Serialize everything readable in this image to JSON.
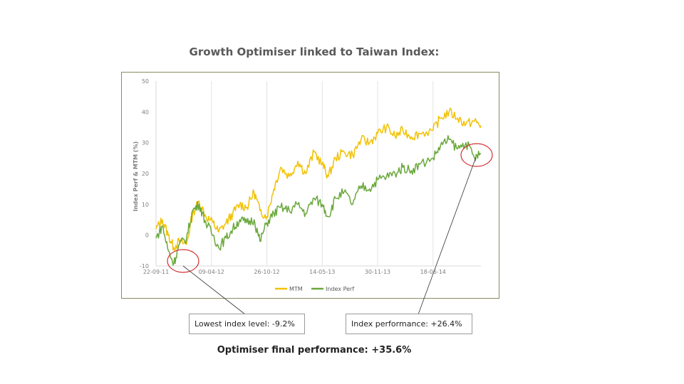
{
  "slide": {
    "title": "Growth Optimiser linked to Taiwan Index:",
    "footer": "Optimiser final performance: +35.6%"
  },
  "callouts": {
    "lowest": "Lowest index level: -9.2%",
    "index_perf": "Index performance: +26.4%"
  },
  "colors": {
    "mtm": "#f2c100",
    "index_perf": "#6aa83c",
    "highlight": "#d32f2f",
    "frame": "#8b8a64"
  },
  "chart_data": {
    "type": "line",
    "title": "",
    "xlabel": "",
    "ylabel": "Index Perf & MTM (%)",
    "ylim": [
      -10,
      50
    ],
    "yticks": [
      -10,
      0,
      10,
      20,
      30,
      40,
      50
    ],
    "x_start": "22-09-11",
    "x_end": "08-12-14",
    "x_ticks": [
      "22-09-11",
      "09-04-12",
      "26-10-12",
      "14-05-13",
      "30-11-13",
      "18-06-14"
    ],
    "grid": "vertical",
    "legend": "bottom",
    "series": [
      {
        "name": "MTM",
        "x": [
          "22-09-11",
          "15-10-11",
          "05-11-11",
          "25-11-11",
          "15-12-11",
          "10-01-12",
          "01-02-12",
          "25-02-12",
          "20-03-12",
          "15-04-12",
          "05-05-12",
          "01-06-12",
          "25-06-12",
          "20-07-12",
          "15-08-12",
          "10-09-12",
          "01-10-12",
          "26-10-12",
          "20-11-12",
          "15-12-12",
          "15-01-13",
          "15-02-13",
          "15-03-13",
          "15-04-13",
          "14-05-13",
          "05-06-13",
          "01-07-13",
          "01-08-13",
          "01-09-13",
          "01-10-13",
          "01-11-13",
          "30-11-13",
          "01-01-14",
          "01-02-14",
          "01-03-14",
          "01-04-14",
          "01-05-14",
          "18-06-14",
          "15-07-14",
          "15-08-14",
          "15-09-14",
          "15-10-14",
          "15-11-14",
          "08-12-14"
        ],
        "values": [
          2,
          5,
          0,
          -4,
          -2,
          -3,
          7,
          11,
          6,
          4,
          1,
          4,
          7,
          10,
          9,
          14,
          8,
          6,
          15,
          22,
          19,
          24,
          20,
          27,
          23,
          19,
          25,
          27,
          26,
          31,
          30,
          33,
          35,
          32,
          34,
          32,
          33,
          34,
          38,
          40,
          38,
          36,
          37,
          35.6
        ]
      },
      {
        "name": "Index Perf",
        "x": [
          "22-09-11",
          "15-10-11",
          "05-11-11",
          "25-11-11",
          "15-12-11",
          "10-01-12",
          "01-02-12",
          "25-02-12",
          "20-03-12",
          "15-04-12",
          "05-05-12",
          "01-06-12",
          "25-06-12",
          "20-07-12",
          "15-08-12",
          "10-09-12",
          "01-10-12",
          "26-10-12",
          "20-11-12",
          "15-12-12",
          "15-01-13",
          "15-02-13",
          "15-03-13",
          "15-04-13",
          "14-05-13",
          "05-06-13",
          "01-07-13",
          "01-08-13",
          "01-09-13",
          "01-10-13",
          "01-11-13",
          "30-11-13",
          "01-01-14",
          "01-02-14",
          "01-03-14",
          "01-04-14",
          "01-05-14",
          "18-06-14",
          "15-07-14",
          "15-08-14",
          "15-09-14",
          "15-10-14",
          "15-11-14",
          "08-12-14"
        ],
        "values": [
          -1,
          3,
          -5,
          -9.2,
          -3,
          -1,
          8,
          10,
          4,
          0,
          -4,
          -1,
          2,
          5,
          4,
          5,
          -2,
          4,
          7,
          9,
          8,
          10,
          7,
          12,
          10,
          6,
          12,
          14,
          10,
          16,
          15,
          18,
          19,
          20,
          22,
          21,
          23,
          25,
          29,
          31,
          28,
          30,
          25,
          26.4
        ]
      }
    ]
  }
}
